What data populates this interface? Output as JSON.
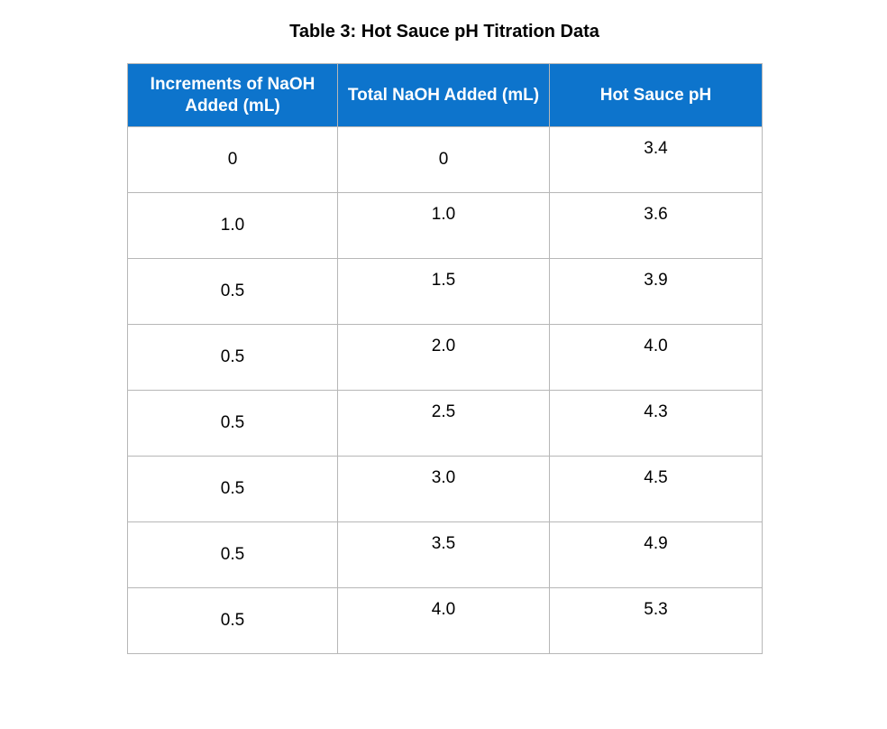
{
  "page": {
    "title": "Table 3: Hot Sauce pH Titration Data"
  },
  "table": {
    "headers": [
      "Increments of NaOH Added (mL)",
      "Total NaOH Added (mL)",
      "Hot Sauce pH"
    ],
    "rows": [
      [
        "0",
        "0",
        "3.4"
      ],
      [
        "1.0",
        "1.0",
        "3.6"
      ],
      [
        "0.5",
        "1.5",
        "3.9"
      ],
      [
        "0.5",
        "2.0",
        "4.0"
      ],
      [
        "0.5",
        "2.5",
        "4.3"
      ],
      [
        "0.5",
        "3.0",
        "4.5"
      ],
      [
        "0.5",
        "3.5",
        "4.9"
      ],
      [
        "0.5",
        "4.0",
        "5.3"
      ]
    ],
    "colors": {
      "header_bg": "#0d74cc",
      "header_text": "#ffffff",
      "border": "#b7b7b7",
      "body_text": "#000000",
      "page_bg": "#ffffff"
    }
  }
}
